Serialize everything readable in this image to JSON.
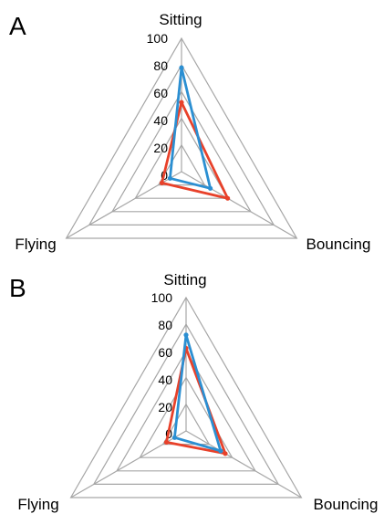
{
  "colors": {
    "series_red": "#e8412a",
    "series_blue": "#2b8fd2",
    "grid": "#a6a6a6"
  },
  "chart_data": [
    {
      "type": "radar",
      "panel_label": "A",
      "axes": [
        "Sitting",
        "Bouncing",
        "Flying"
      ],
      "ticks": [
        "0",
        "20",
        "40",
        "60",
        "80",
        "100"
      ],
      "rlim": [
        0,
        100
      ],
      "grid": true,
      "series": [
        {
          "color": "#e8412a",
          "values": [
            52,
            40,
            17
          ]
        },
        {
          "color": "#2b8fd2",
          "values": [
            78,
            25,
            10
          ]
        }
      ]
    },
    {
      "type": "radar",
      "panel_label": "B",
      "axes": [
        "Sitting",
        "Bouncing",
        "Flying"
      ],
      "ticks": [
        "0",
        "20",
        "40",
        "60",
        "80",
        "100"
      ],
      "rlim": [
        0,
        100
      ],
      "grid": true,
      "series": [
        {
          "color": "#e8412a",
          "values": [
            62,
            34,
            17
          ]
        },
        {
          "color": "#2b8fd2",
          "values": [
            72,
            30,
            10
          ]
        }
      ]
    }
  ]
}
